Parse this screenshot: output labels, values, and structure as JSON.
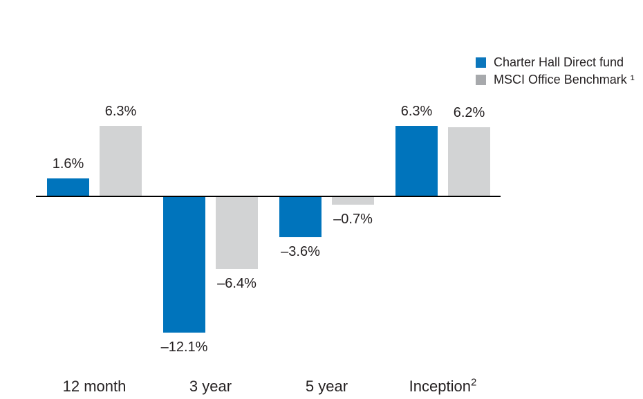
{
  "chart_data": {
    "type": "bar",
    "title": "",
    "xlabel": "",
    "ylabel": "",
    "ylim": [
      -13,
      7
    ],
    "grid": false,
    "legend_position": "top-right",
    "axis": {
      "baseline_only": true,
      "baseline_value": 0
    },
    "categories": [
      {
        "label": "12 month",
        "sup": ""
      },
      {
        "label": "3 year",
        "sup": ""
      },
      {
        "label": "5 year",
        "sup": ""
      },
      {
        "label": "Inception",
        "sup": "2"
      }
    ],
    "series": [
      {
        "name": "Charter Hall Direct fund",
        "color": "#0074bc",
        "values": [
          1.6,
          -12.1,
          -3.6,
          6.3
        ],
        "labels": [
          "1.6%",
          "–12.1%",
          "–3.6%",
          "6.3%"
        ]
      },
      {
        "name": "MSCI Office Benchmark ¹",
        "color": "#d2d3d4",
        "values": [
          6.3,
          -6.4,
          -0.7,
          6.2
        ],
        "labels": [
          "6.3%",
          "–6.4%",
          "–0.7%",
          "6.2%"
        ]
      }
    ]
  },
  "legend": {
    "items": [
      {
        "label": "Charter Hall Direct fund",
        "swatch_color": "#0b76bc"
      },
      {
        "label": "MSCI Office Benchmark ¹",
        "swatch_color": "#a7a9ac"
      }
    ]
  },
  "colors": {
    "fund_bar": "#0074bc",
    "benchmark_bar": "#d2d3d4",
    "axis": "#000000",
    "text": "#231f20",
    "background": "#ffffff"
  }
}
